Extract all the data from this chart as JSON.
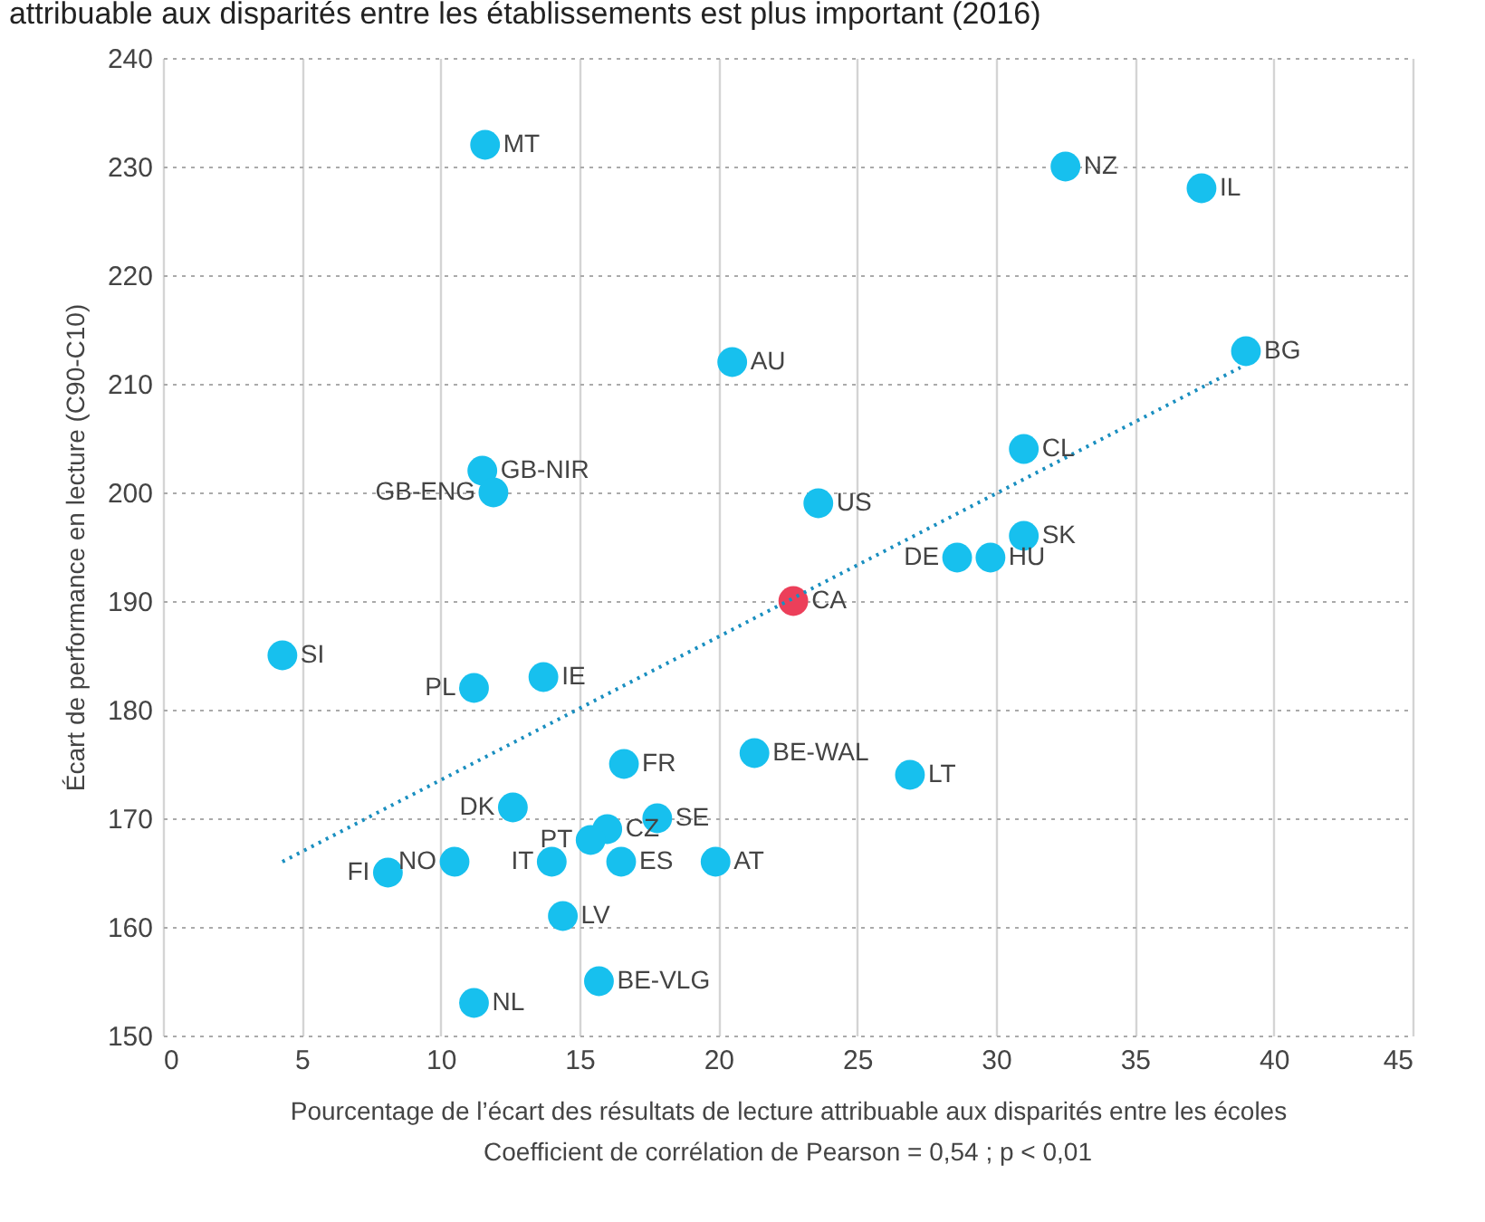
{
  "chart_data": {
    "type": "scatter",
    "title": "attribuable aux disparités entre les établissements est plus important (2016)",
    "xlabel": "Pourcentage de l’écart des résultats de lecture attribuable aux disparités entre les écoles",
    "ylabel": "Écart de performance en lecture (C90-C10)",
    "xlim": [
      0,
      45
    ],
    "xticks": [
      0,
      5,
      10,
      15,
      20,
      25,
      30,
      35,
      40,
      45
    ],
    "ylim": [
      150,
      240
    ],
    "yticks": [
      150,
      160,
      170,
      180,
      190,
      200,
      210,
      220,
      230,
      240
    ],
    "grid": true,
    "marker": "circle",
    "series": [
      {
        "x": [
          11.6,
          32.5,
          37.4,
          20.5,
          39.0,
          31.0,
          11.5,
          11.9,
          23.6,
          31.0,
          28.6,
          29.8,
          22.7,
          4.3,
          11.2,
          13.7,
          16.6,
          21.3,
          26.9,
          12.6,
          17.8,
          16.0,
          15.4,
          10.5,
          8.1,
          14.0,
          16.5,
          19.9,
          14.4,
          15.7,
          11.2
        ],
        "values": [
          232,
          230,
          228,
          212,
          213,
          204,
          202,
          200,
          199,
          196,
          194,
          194,
          190,
          185,
          182,
          183,
          175,
          176,
          174,
          171,
          170,
          169,
          168,
          166,
          165,
          166,
          166,
          166,
          161,
          155,
          153
        ],
        "colors": [
          "#17c0ee",
          "#17c0ee",
          "#17c0ee",
          "#17c0ee",
          "#17c0ee",
          "#17c0ee",
          "#17c0ee",
          "#17c0ee",
          "#17c0ee",
          "#17c0ee",
          "#17c0ee",
          "#17c0ee",
          "#ec3f5a",
          "#17c0ee",
          "#17c0ee",
          "#17c0ee",
          "#17c0ee",
          "#17c0ee",
          "#17c0ee",
          "#17c0ee",
          "#17c0ee",
          "#17c0ee",
          "#17c0ee",
          "#17c0ee",
          "#17c0ee",
          "#17c0ee",
          "#17c0ee",
          "#17c0ee",
          "#17c0ee",
          "#17c0ee",
          "#17c0ee"
        ]
      },
      {
        "type": "line",
        "color": "#1a8fc0",
        "line_style": "dotted",
        "marker": "none",
        "x": [
          4.3,
          38.8
        ],
        "values": [
          166,
          211.5
        ]
      }
    ],
    "annotations": [
      {
        "text": "MT",
        "x": 11.6,
        "y": 232
      },
      {
        "text": "NZ",
        "x": 32.5,
        "y": 230
      },
      {
        "text": "IL",
        "x": 37.4,
        "y": 228
      },
      {
        "text": "AU",
        "x": 20.5,
        "y": 212
      },
      {
        "text": "BG",
        "x": 39.0,
        "y": 213
      },
      {
        "text": "CL",
        "x": 31.0,
        "y": 204
      },
      {
        "text": "GB-NIR",
        "x": 11.5,
        "y": 202
      },
      {
        "text": "GB-ENG",
        "x": 11.9,
        "y": 200
      },
      {
        "text": "US",
        "x": 23.6,
        "y": 199
      },
      {
        "text": "SK",
        "x": 31.0,
        "y": 196
      },
      {
        "text": "DE",
        "x": 28.6,
        "y": 194
      },
      {
        "text": "HU",
        "x": 29.8,
        "y": 194
      },
      {
        "text": "CA",
        "x": 22.7,
        "y": 190
      },
      {
        "text": "SI",
        "x": 4.3,
        "y": 185
      },
      {
        "text": "PL",
        "x": 11.2,
        "y": 182
      },
      {
        "text": "IE",
        "x": 13.7,
        "y": 183
      },
      {
        "text": "FR",
        "x": 16.6,
        "y": 175
      },
      {
        "text": "BE-WAL",
        "x": 21.3,
        "y": 176
      },
      {
        "text": "LT",
        "x": 26.9,
        "y": 174
      },
      {
        "text": "DK",
        "x": 12.6,
        "y": 171
      },
      {
        "text": "SE",
        "x": 17.8,
        "y": 170
      },
      {
        "text": "CZ",
        "x": 16.0,
        "y": 169
      },
      {
        "text": "PT",
        "x": 15.4,
        "y": 168
      },
      {
        "text": "NO",
        "x": 10.5,
        "y": 166
      },
      {
        "text": "FI",
        "x": 8.1,
        "y": 165
      },
      {
        "text": "IT",
        "x": 14.0,
        "y": 166
      },
      {
        "text": "ES",
        "x": 16.5,
        "y": 166
      },
      {
        "text": "AT",
        "x": 19.9,
        "y": 166
      },
      {
        "text": "LV",
        "x": 14.4,
        "y": 161
      },
      {
        "text": "BE-VLG",
        "x": 15.7,
        "y": 155
      },
      {
        "text": "NL",
        "x": 11.2,
        "y": 153
      },
      "Coefficient de corrélation de Pearson = 0,54 ; p < 0,01"
    ]
  }
}
